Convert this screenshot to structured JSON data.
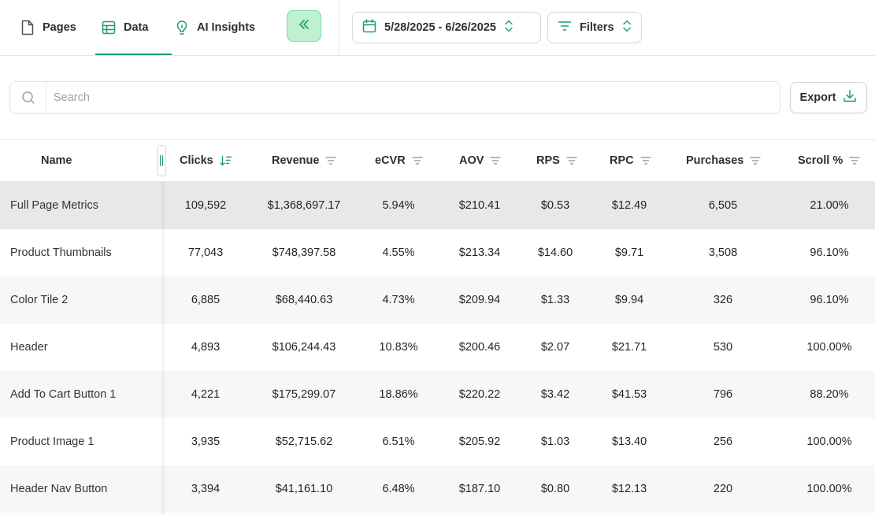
{
  "nav": {
    "tabs": [
      {
        "label": "Pages",
        "icon": "file-icon"
      },
      {
        "label": "Data",
        "icon": "table-icon",
        "active": true
      },
      {
        "label": "AI Insights",
        "icon": "lightbulb-icon"
      }
    ],
    "collapse_icon": "chevrons-left-icon"
  },
  "toolbar": {
    "date_range": "5/28/2025 - 6/26/2025",
    "filters_label": "Filters"
  },
  "search": {
    "placeholder": "Search",
    "value": ""
  },
  "export_label": "Export",
  "table": {
    "columns": [
      "Name",
      "Clicks",
      "Revenue",
      "eCVR",
      "AOV",
      "RPS",
      "RPC",
      "Purchases",
      "Scroll %"
    ],
    "sorted_by": "Clicks",
    "rows": [
      {
        "name": "Full Page Metrics",
        "clicks": "109,592",
        "revenue": "$1,368,697.17",
        "ecvr": "5.94%",
        "aov": "$210.41",
        "rps": "$0.53",
        "rpc": "$12.49",
        "purchases": "6,505",
        "scroll": "21.00%"
      },
      {
        "name": "Product Thumbnails",
        "clicks": "77,043",
        "revenue": "$748,397.58",
        "ecvr": "4.55%",
        "aov": "$213.34",
        "rps": "$14.60",
        "rpc": "$9.71",
        "purchases": "3,508",
        "scroll": "96.10%"
      },
      {
        "name": "Color Tile 2",
        "clicks": "6,885",
        "revenue": "$68,440.63",
        "ecvr": "4.73%",
        "aov": "$209.94",
        "rps": "$1.33",
        "rpc": "$9.94",
        "purchases": "326",
        "scroll": "96.10%"
      },
      {
        "name": "Header",
        "clicks": "4,893",
        "revenue": "$106,244.43",
        "ecvr": "10.83%",
        "aov": "$200.46",
        "rps": "$2.07",
        "rpc": "$21.71",
        "purchases": "530",
        "scroll": "100.00%"
      },
      {
        "name": "Add To Cart Button 1",
        "clicks": "4,221",
        "revenue": "$175,299.07",
        "ecvr": "18.86%",
        "aov": "$220.22",
        "rps": "$3.42",
        "rpc": "$41.53",
        "purchases": "796",
        "scroll": "88.20%"
      },
      {
        "name": "Product Image 1",
        "clicks": "3,935",
        "revenue": "$52,715.62",
        "ecvr": "6.51%",
        "aov": "$205.92",
        "rps": "$1.03",
        "rpc": "$13.40",
        "purchases": "256",
        "scroll": "100.00%"
      },
      {
        "name": "Header Nav Button",
        "clicks": "3,394",
        "revenue": "$41,161.10",
        "ecvr": "6.48%",
        "aov": "$187.10",
        "rps": "$0.80",
        "rpc": "$12.13",
        "purchases": "220",
        "scroll": "100.00%"
      }
    ]
  },
  "colors": {
    "accent": "#1f9d63",
    "accent_soft": "#bff0d2",
    "row_selected": "#e8e8e9",
    "row_alt": "#f7f7f7"
  }
}
